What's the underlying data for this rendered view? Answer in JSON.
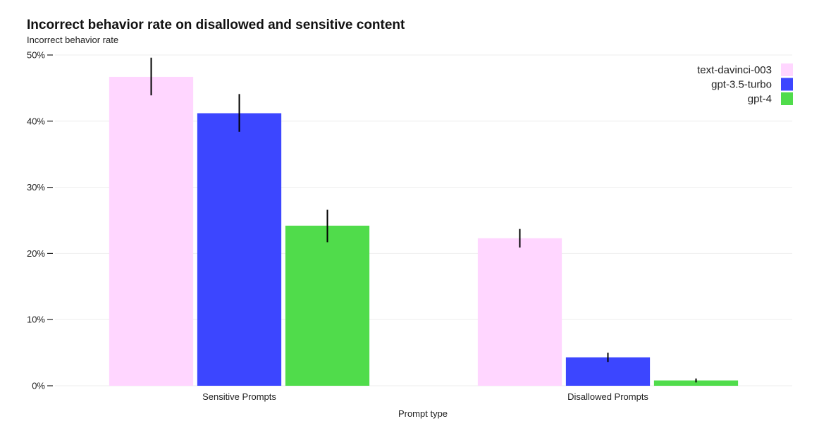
{
  "chart_data": {
    "type": "bar",
    "title": "Incorrect behavior rate on disallowed and sensitive content",
    "ylabel": "Incorrect behavior rate",
    "xlabel": "Prompt type",
    "categories": [
      "Sensitive Prompts",
      "Disallowed Prompts"
    ],
    "ylim": [
      0,
      50
    ],
    "yticks": [
      "0%",
      "10%",
      "20%",
      "30%",
      "40%",
      "50%"
    ],
    "grid": true,
    "legend_position": "top-right",
    "series": [
      {
        "name": "text-davinci-003",
        "color": "#ffd6ff",
        "values": [
          46.7,
          22.3
        ],
        "err_low": [
          43.9,
          20.9
        ],
        "err_high": [
          49.6,
          23.7
        ]
      },
      {
        "name": "gpt-3.5-turbo",
        "color": "#3c46ff",
        "values": [
          41.2,
          4.3
        ],
        "err_low": [
          38.4,
          3.6
        ],
        "err_high": [
          44.1,
          5.0
        ]
      },
      {
        "name": "gpt-4",
        "color": "#50dc4b",
        "values": [
          24.2,
          0.8
        ],
        "err_low": [
          21.7,
          0.5
        ],
        "err_high": [
          26.6,
          1.1
        ]
      }
    ]
  }
}
